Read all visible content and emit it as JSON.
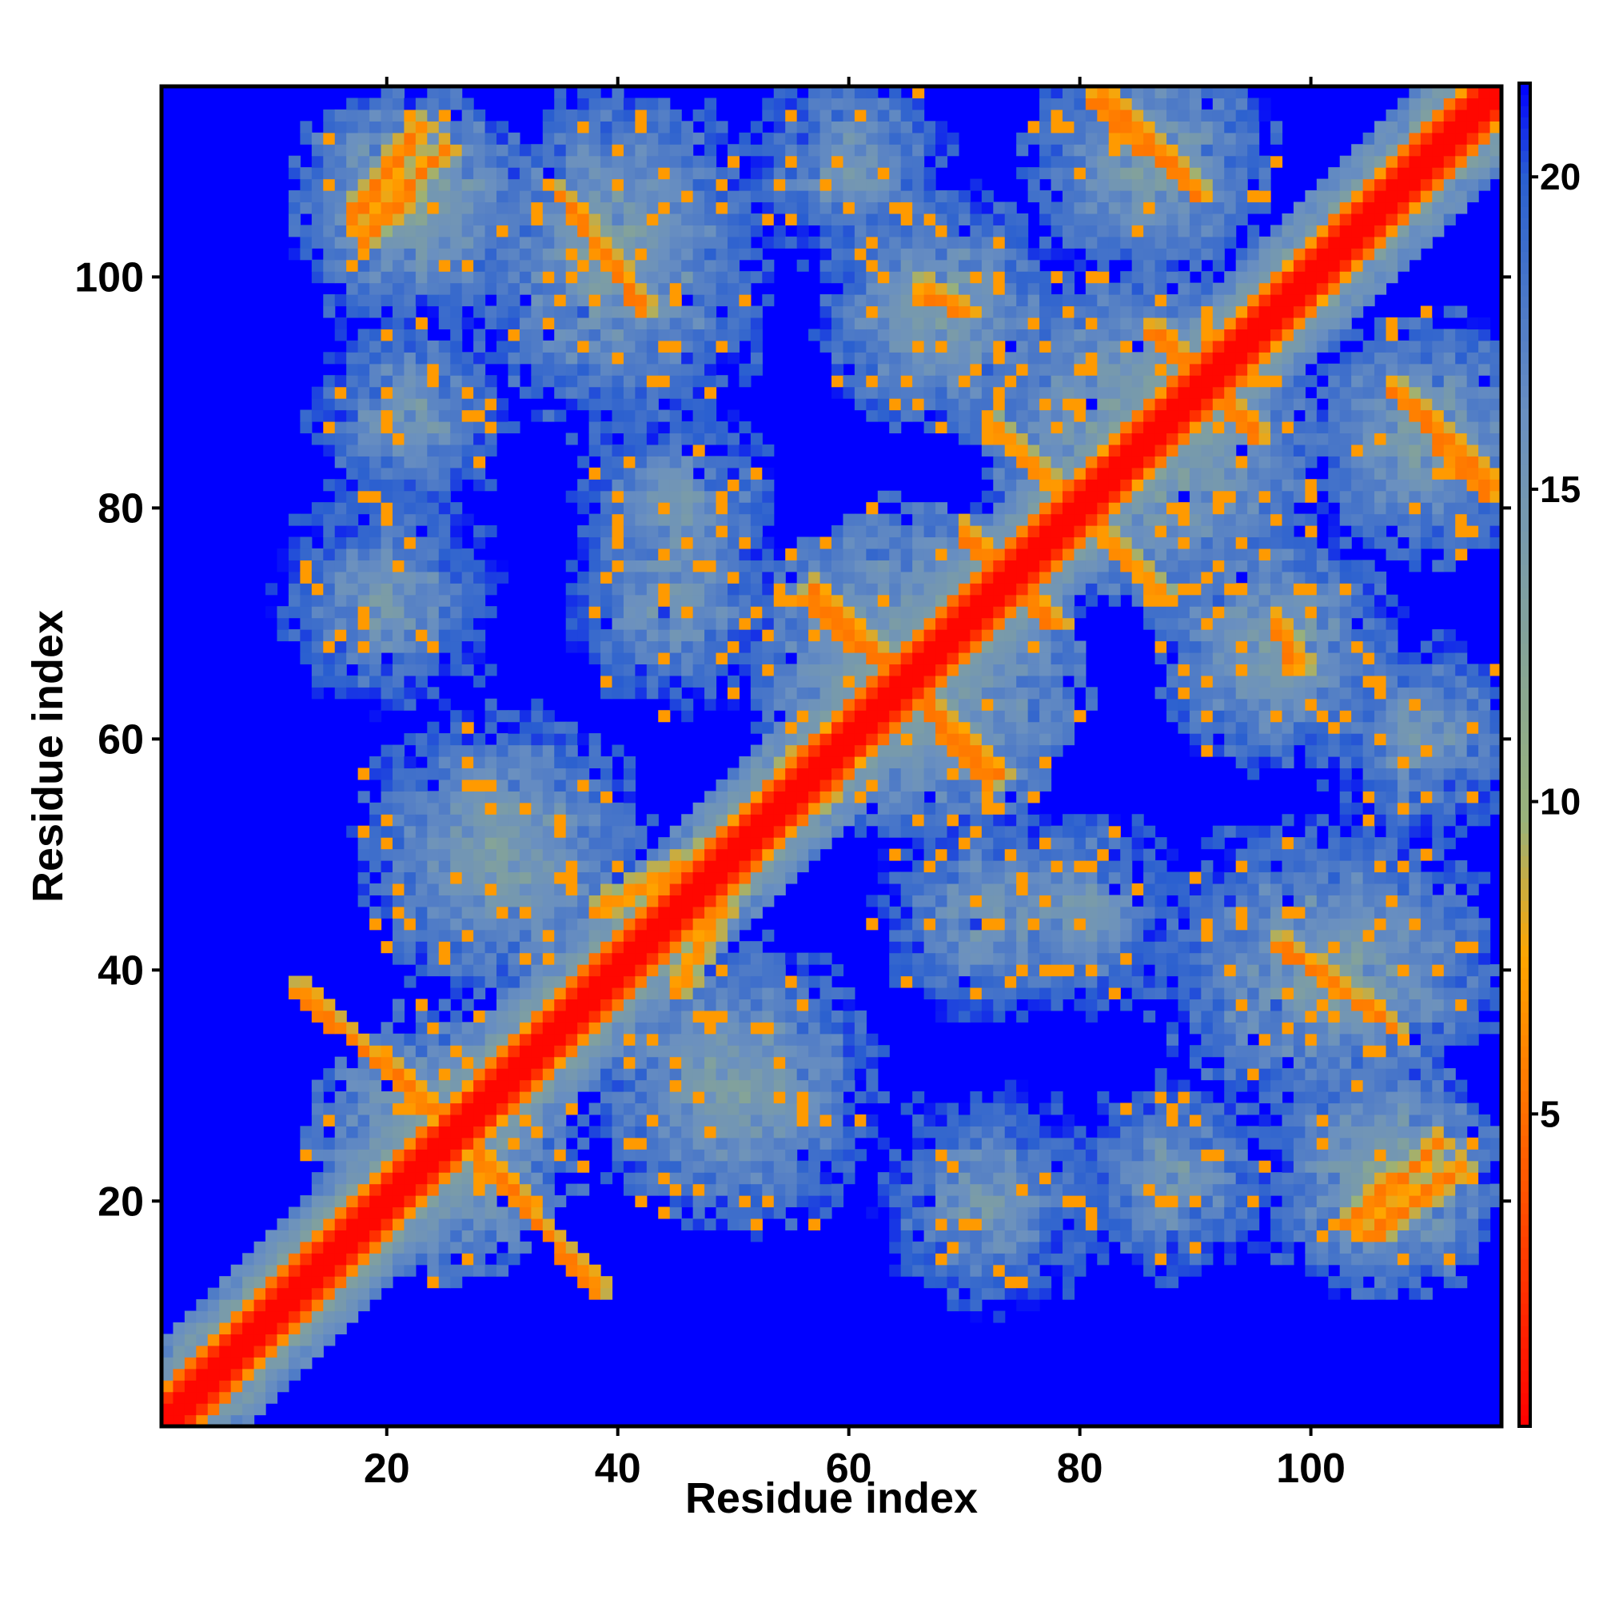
{
  "chart_data": {
    "type": "heatmap",
    "title": "",
    "xlabel": "Residue index",
    "ylabel": "Residue index",
    "n_residues": 116,
    "xlim": [
      1,
      116
    ],
    "ylim": [
      1,
      116
    ],
    "x_ticks": [
      20,
      40,
      60,
      80,
      100
    ],
    "y_ticks": [
      20,
      40,
      60,
      80,
      100
    ],
    "colorbar": {
      "ticks": [
        5,
        10,
        15,
        20
      ],
      "range": [
        0,
        21.5
      ],
      "palette": [
        {
          "stop": 0,
          "color": "#ff0000"
        },
        {
          "stop": 0.18,
          "color": "#ff5500"
        },
        {
          "stop": 0.35,
          "color": "#ffa500"
        },
        {
          "stop": 0.45,
          "color": "#99b27a"
        },
        {
          "stop": 0.75,
          "color": "#6a90c0"
        },
        {
          "stop": 0.93,
          "color": "#2a5fd0"
        },
        {
          "stop": 1,
          "color": "#0000ff"
        }
      ]
    },
    "matrix_description": "symmetric residue distance map; diagonal contact band plus off-diagonal contact segments",
    "contact_segments": [
      {
        "from": [
          12,
          38
        ],
        "to": [
          27,
          25
        ],
        "value": 6
      },
      {
        "from": [
          27,
          25
        ],
        "to": [
          37,
          13
        ],
        "value": 6
      },
      {
        "from": [
          35,
          107
        ],
        "to": [
          42,
          97
        ],
        "value": 6
      },
      {
        "from": [
          17,
          105
        ],
        "to": [
          23,
          113
        ],
        "value": 6
      },
      {
        "from": [
          57,
          73
        ],
        "to": [
          72,
          56
        ],
        "value": 6
      },
      {
        "from": [
          70,
          77
        ],
        "to": [
          78,
          70
        ],
        "value": 6
      },
      {
        "from": [
          73,
          87
        ],
        "to": [
          86,
          73
        ],
        "value": 7
      },
      {
        "from": [
          82,
          116
        ],
        "to": [
          90,
          107
        ],
        "value": 6
      },
      {
        "from": [
          103,
          18
        ],
        "to": [
          111,
          25
        ],
        "value": 6
      },
      {
        "from": [
          97,
          42
        ],
        "to": [
          104,
          37
        ],
        "value": 7
      },
      {
        "from": [
          107,
          90
        ],
        "to": [
          115,
          81
        ],
        "value": 6
      },
      {
        "from": [
          86,
          95
        ],
        "to": [
          95,
          86
        ],
        "value": 6
      },
      {
        "from": [
          97,
          97
        ],
        "to": [
          100,
          102
        ],
        "value": 6
      },
      {
        "from": [
          66,
          98
        ],
        "to": [
          70,
          97
        ],
        "value": 6
      },
      {
        "from": [
          97,
          70
        ],
        "to": [
          99,
          66
        ],
        "value": 7
      },
      {
        "from": [
          38,
          45
        ],
        "to": [
          58,
          55
        ],
        "value": 7
      },
      {
        "from": [
          45,
          38
        ],
        "to": [
          55,
          58
        ],
        "value": 7
      }
    ],
    "contact_blobs": [
      {
        "center": [
          25,
          25
        ],
        "radius": 11,
        "value": 13
      },
      {
        "center": [
          22,
          106
        ],
        "radius": 10,
        "value": 14
      },
      {
        "center": [
          40,
          104
        ],
        "radius": 12,
        "value": 14
      },
      {
        "center": [
          66,
          66
        ],
        "radius": 14,
        "value": 13
      },
      {
        "center": [
          86,
          86
        ],
        "radius": 14,
        "value": 13
      },
      {
        "center": [
          100,
          40
        ],
        "radius": 13,
        "value": 14
      },
      {
        "center": [
          107,
          22
        ],
        "radius": 9,
        "value": 13
      },
      {
        "center": [
          110,
          86
        ],
        "radius": 10,
        "value": 14
      },
      {
        "center": [
          97,
          68
        ],
        "radius": 10,
        "value": 14
      },
      {
        "center": [
          68,
          97
        ],
        "radius": 10,
        "value": 14
      },
      {
        "center": [
          86,
          110
        ],
        "radius": 10,
        "value": 14
      },
      {
        "center": [
          30,
          50
        ],
        "radius": 12,
        "value": 14
      },
      {
        "center": [
          50,
          30
        ],
        "radius": 12,
        "value": 14
      },
      {
        "center": [
          20,
          72
        ],
        "radius": 9,
        "value": 15
      },
      {
        "center": [
          72,
          20
        ],
        "radius": 9,
        "value": 15
      },
      {
        "center": [
          45,
          72
        ],
        "radius": 9,
        "value": 15
      },
      {
        "center": [
          72,
          45
        ],
        "radius": 9,
        "value": 15
      },
      {
        "center": [
          22,
          88
        ],
        "radius": 8,
        "value": 15
      },
      {
        "center": [
          88,
          22
        ],
        "radius": 8,
        "value": 15
      },
      {
        "center": [
          110,
          60
        ],
        "radius": 8,
        "value": 15
      },
      {
        "center": [
          60,
          110
        ],
        "radius": 8,
        "value": 15
      },
      {
        "center": [
          80,
          45
        ],
        "radius": 8,
        "value": 15
      },
      {
        "center": [
          45,
          80
        ],
        "radius": 8,
        "value": 15
      }
    ],
    "background_value": 21.5
  }
}
